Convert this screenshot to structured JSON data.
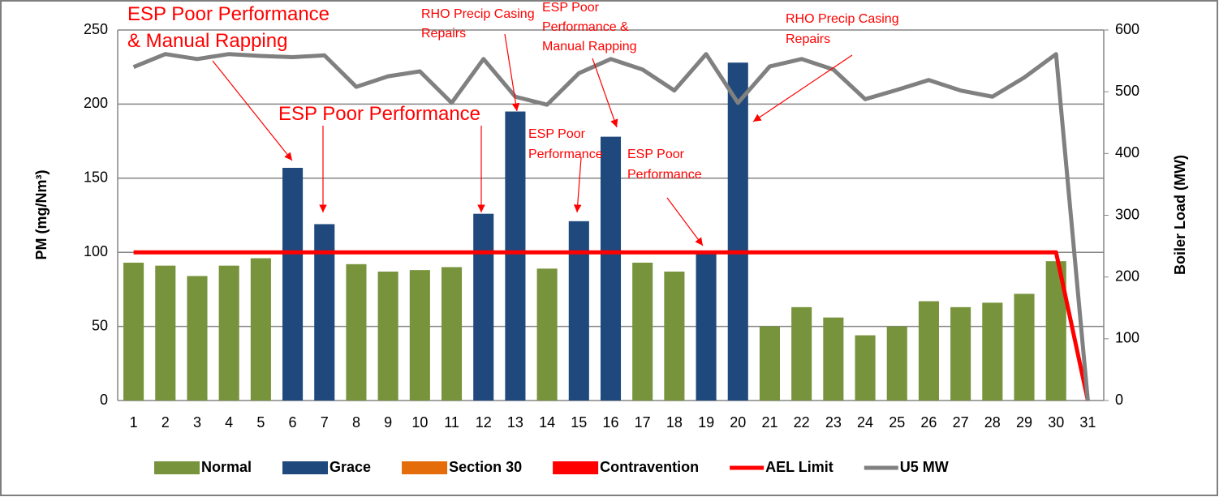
{
  "chart_data": {
    "type": "bar",
    "categories": [
      "1",
      "2",
      "3",
      "4",
      "5",
      "6",
      "7",
      "8",
      "9",
      "10",
      "11",
      "12",
      "13",
      "14",
      "15",
      "16",
      "17",
      "18",
      "19",
      "20",
      "21",
      "22",
      "23",
      "24",
      "25",
      "26",
      "27",
      "28",
      "29",
      "30",
      "31"
    ],
    "series": [
      {
        "name": "Normal",
        "color": "#77933c",
        "values": [
          93,
          91,
          84,
          91,
          96,
          null,
          null,
          92,
          87,
          88,
          90,
          null,
          null,
          89,
          null,
          null,
          93,
          87,
          null,
          null,
          50,
          63,
          56,
          44,
          50,
          67,
          63,
          66,
          72,
          94,
          null
        ]
      },
      {
        "name": "Grace",
        "color": "#1f497d",
        "values": [
          null,
          null,
          null,
          null,
          null,
          157,
          119,
          null,
          null,
          null,
          null,
          126,
          195,
          null,
          121,
          178,
          null,
          null,
          100,
          228,
          null,
          null,
          null,
          null,
          null,
          null,
          null,
          null,
          null,
          null,
          null
        ]
      },
      {
        "name": "Section 30",
        "color": "#e46c0a",
        "values": [
          null,
          null,
          null,
          null,
          null,
          null,
          null,
          null,
          null,
          null,
          null,
          null,
          null,
          null,
          null,
          null,
          null,
          null,
          null,
          null,
          null,
          null,
          null,
          null,
          null,
          null,
          null,
          null,
          null,
          null,
          null
        ]
      },
      {
        "name": "Contravention",
        "color": "#ff0000",
        "values": [
          null,
          null,
          null,
          null,
          null,
          null,
          null,
          null,
          null,
          null,
          null,
          null,
          null,
          null,
          null,
          null,
          null,
          null,
          null,
          null,
          null,
          null,
          null,
          null,
          null,
          null,
          null,
          null,
          null,
          null,
          null
        ]
      },
      {
        "name": "AEL Limit",
        "type": "line",
        "color": "#ff0000",
        "values": [
          100,
          100,
          100,
          100,
          100,
          100,
          100,
          100,
          100,
          100,
          100,
          100,
          100,
          100,
          100,
          100,
          100,
          100,
          100,
          100,
          100,
          100,
          100,
          100,
          100,
          100,
          100,
          100,
          100,
          100,
          0
        ]
      },
      {
        "name": "U5 MW",
        "type": "line",
        "axis": "y2",
        "color": "#808080",
        "values": [
          540,
          561,
          553,
          561,
          558,
          556,
          559,
          508,
          525,
          533,
          482,
          553,
          492,
          479,
          530,
          553,
          536,
          502,
          561,
          482,
          541,
          553,
          536,
          488,
          503,
          519,
          502,
          492,
          523,
          561,
          0
        ]
      }
    ],
    "ylabel": "PM (mg/Nm³)",
    "y2label": "Boiler Load (MW)",
    "ylim": [
      0,
      250
    ],
    "yticks": [
      0,
      50,
      100,
      150,
      200,
      250
    ],
    "y2lim": [
      0,
      600
    ],
    "y2ticks": [
      0,
      100,
      200,
      300,
      400,
      500,
      600
    ],
    "grid": true,
    "legend": "bottom",
    "annotations": [
      {
        "lines": [
          "ESP Poor Performance",
          "& Manual Rapping"
        ]
      },
      {
        "lines": [
          "ESP Poor Performance"
        ]
      },
      {
        "lines": [
          "RHO Precip Casing",
          "Repairs"
        ]
      },
      {
        "lines": [
          "ESP Poor",
          "Performance &",
          "Manual Rapping"
        ]
      },
      {
        "lines": [
          "ESP Poor",
          "Performance"
        ]
      },
      {
        "lines": [
          "ESP Poor",
          "Performance"
        ]
      },
      {
        "lines": [
          "RHO Precip Casing",
          "Repairs"
        ]
      }
    ]
  }
}
